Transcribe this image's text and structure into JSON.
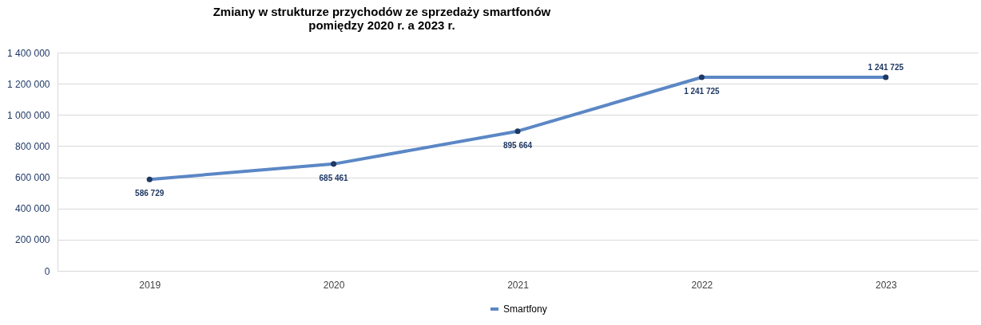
{
  "chart_data": {
    "type": "line",
    "title": "Zmiany w strukturze przychodów ze sprzedaży smartfonów\npomiędzy  2020 r. a  2023 r.",
    "categories": [
      "2019",
      "2020",
      "2021",
      "2022",
      "2023"
    ],
    "series": [
      {
        "name": "Smartfony",
        "color": "#5b87c5",
        "values": [
          586729,
          685461,
          895664,
          1241725,
          1241725
        ],
        "value_labels": [
          "586 729",
          "685 461",
          "895 664",
          "1 241 725",
          "1 241 725"
        ]
      }
    ],
    "ylim": [
      0,
      1400000
    ],
    "yticks": [
      {
        "value": 0,
        "label": "0"
      },
      {
        "value": 200000,
        "label": "200 000"
      },
      {
        "value": 400000,
        "label": "400 000"
      },
      {
        "value": 600000,
        "label": "600 000"
      },
      {
        "value": 800000,
        "label": "800 000"
      },
      {
        "value": 1000000,
        "label": "1 000 000"
      },
      {
        "value": 1200000,
        "label": "1 200 000"
      },
      {
        "value": 1400000,
        "label": "1 400 000"
      }
    ],
    "grid": "y",
    "legend": "bottom",
    "marker": "circle",
    "line_style": "solid"
  }
}
